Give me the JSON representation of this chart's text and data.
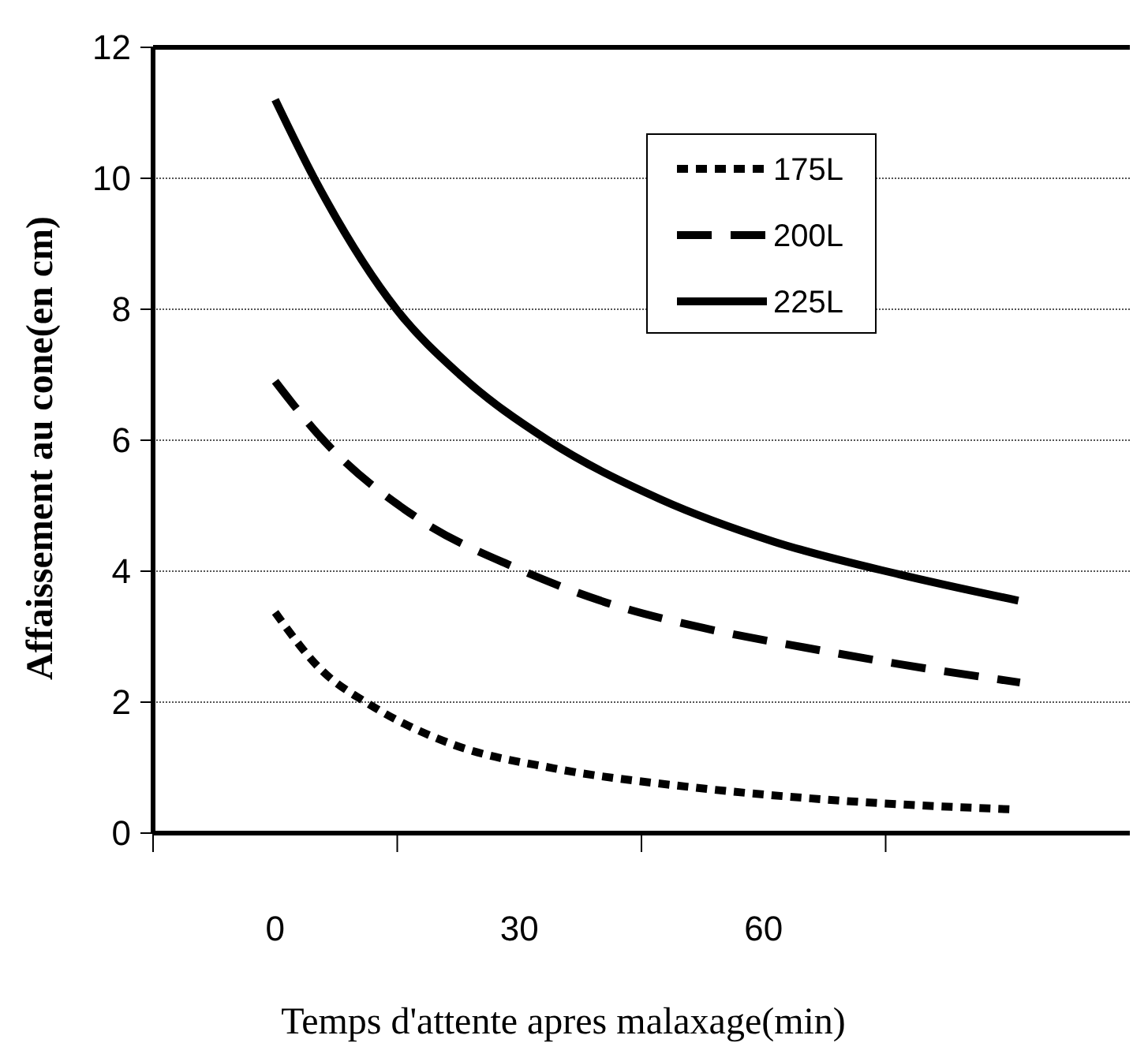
{
  "chart_data": {
    "type": "line",
    "xlabel": "Temps d'attente apres malaxage(min)",
    "ylabel": "Affaissement au cone(en cm)",
    "xlim": [
      -15,
      105
    ],
    "xticks": [
      {
        "value": -15,
        "label": null
      },
      0,
      {
        "value": 15,
        "label": null
      },
      30,
      {
        "value": 45,
        "label": null
      },
      60,
      {
        "value": 75,
        "label": null
      }
    ],
    "ylim": [
      0,
      12
    ],
    "yticks": [
      0,
      2,
      4,
      6,
      8,
      10,
      12
    ],
    "grid": "y",
    "legend": "top right",
    "marker": "none",
    "series": [
      {
        "name": "175L",
        "color": "#000000",
        "line_style": "dotted",
        "x": [
          0,
          5.6,
          11.8,
          21.9,
          34.2,
          51.2,
          69,
          91
        ],
        "values": [
          3.37,
          2.5,
          1.95,
          1.35,
          0.99,
          0.7,
          0.5,
          0.36
        ]
      },
      {
        "name": "200L",
        "color": "#000000",
        "line_style": "dashed",
        "x": [
          0,
          5.2,
          17.6,
          29.6,
          41.2,
          52.7,
          64.8,
          76.7,
          91.5
        ],
        "values": [
          6.9,
          6.1,
          4.8,
          4.05,
          3.5,
          3.13,
          2.84,
          2.58,
          2.3
        ]
      },
      {
        "name": "225L",
        "color": "#000000",
        "line_style": "solid",
        "x": [
          0,
          4.8,
          14.9,
          22.7,
          33.5,
          47.3,
          61.3,
          76.7,
          91.3
        ],
        "values": [
          11.2,
          10,
          8,
          7,
          6,
          5.1,
          4.45,
          3.95,
          3.55
        ]
      }
    ]
  }
}
